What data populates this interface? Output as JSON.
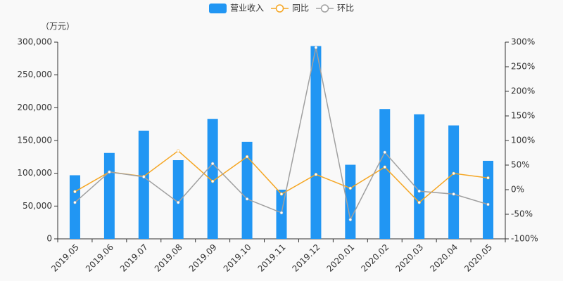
{
  "chart_data": {
    "type": "bar",
    "y_label": "（万元）",
    "legend": "top",
    "grid": false,
    "categories": [
      "2019.05",
      "2019.06",
      "2019.07",
      "2019.08",
      "2019.09",
      "2019.10",
      "2019.11",
      "2019.12",
      "2020.01",
      "2020.02",
      "2020.03",
      "2020.04",
      "2020.05"
    ],
    "series": [
      {
        "name": "营业收入",
        "type": "bar",
        "color": "#2196f3",
        "values": [
          97000,
          131000,
          165000,
          120000,
          183000,
          148000,
          75000,
          294000,
          113000,
          198000,
          190000,
          173000,
          119000
        ]
      },
      {
        "name": "同比",
        "type": "line",
        "axis": "y2",
        "color": "#f5a623",
        "values": [
          -4,
          36,
          27,
          79,
          17,
          67,
          -9,
          31,
          3,
          46,
          -26,
          33,
          24
        ]
      },
      {
        "name": "环比",
        "type": "line",
        "axis": "y2",
        "color": "#a0a0a0",
        "values": [
          -26,
          36,
          26,
          -26,
          53,
          -19,
          -47,
          289,
          -61,
          76,
          -3,
          -9,
          -30
        ]
      }
    ],
    "ylim": [
      0,
      300000
    ],
    "yticks": [
      {
        "value": 0,
        "label": "0"
      },
      {
        "value": 50000,
        "label": "50,000"
      },
      {
        "value": 100000,
        "label": "100,000"
      },
      {
        "value": 150000,
        "label": "150,000"
      },
      {
        "value": 200000,
        "label": "200,000"
      },
      {
        "value": 250000,
        "label": "250,000"
      },
      {
        "value": 300000,
        "label": "300,000"
      }
    ],
    "y2lim": [
      -100,
      300
    ],
    "y2ticks": [
      {
        "value": -100,
        "label": "-100%"
      },
      {
        "value": -50,
        "label": "-50%"
      },
      {
        "value": 0,
        "label": "0%"
      },
      {
        "value": 50,
        "label": "50%"
      },
      {
        "value": 100,
        "label": "100%"
      },
      {
        "value": 150,
        "label": "150%"
      },
      {
        "value": 200,
        "label": "200%"
      },
      {
        "value": 250,
        "label": "250%"
      },
      {
        "value": 300,
        "label": "300%"
      }
    ]
  }
}
